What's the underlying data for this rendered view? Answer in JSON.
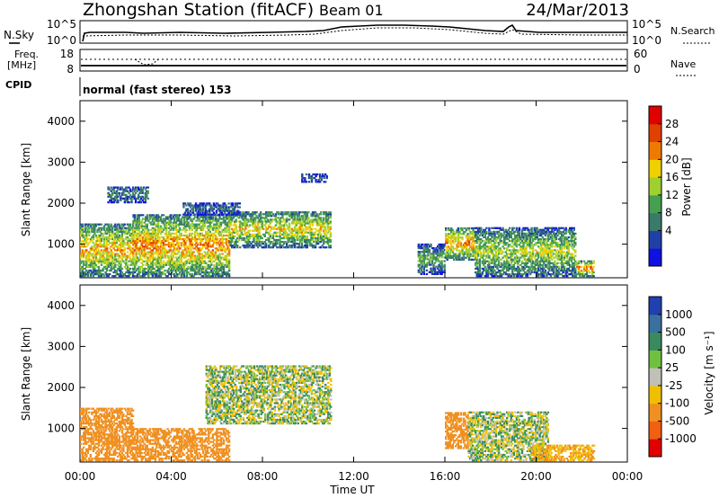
{
  "header": {
    "title": "Zhongshan Station (fitACF)",
    "beam": "Beam 01",
    "date": "24/Mar/2013"
  },
  "top_panel": {
    "left_label": "N.Sky",
    "right_label": "N.Search",
    "left_ticks": [
      "10^5",
      "10^0"
    ],
    "right_ticks": [
      "10^5",
      "10^0"
    ]
  },
  "freq_panel": {
    "left_label_line1": "Freq.",
    "left_label_line2": "[MHz]",
    "right_label": "Nave",
    "left_ticks": [
      "18",
      "8"
    ],
    "right_ticks": [
      "60",
      "0"
    ]
  },
  "cpid": {
    "label": "CPID",
    "text": "normal (fast stereo) 153"
  },
  "xaxis": {
    "label": "Time UT",
    "ticks": [
      "00:00",
      "04:00",
      "08:00",
      "12:00",
      "16:00",
      "20:00",
      "00:00"
    ]
  },
  "power_panel": {
    "ylabel": "Slant Range [km]",
    "yticks": [
      "4000",
      "3000",
      "2000",
      "1000"
    ],
    "colorbar_label": "Power [dB]",
    "colorbar_ticks": [
      "28",
      "24",
      "20",
      "16",
      "12",
      "8",
      "4"
    ],
    "colors": [
      "#1010e0",
      "#2040a8",
      "#3a7a6a",
      "#45a050",
      "#a0d030",
      "#f0d000",
      "#f07a00",
      "#e04000",
      "#e00000"
    ]
  },
  "velocity_panel": {
    "ylabel": "Slant Range [km]",
    "yticks": [
      "4000",
      "3000",
      "2000",
      "1000"
    ],
    "colorbar_label": "Velocity [m s⁻¹]",
    "colorbar_ticks": [
      "1000",
      "500",
      "100",
      "25",
      "-25",
      "-100",
      "-500",
      "-1000"
    ],
    "colors": [
      "#2040b0",
      "#3a70a0",
      "#3a8a60",
      "#70c040",
      "#c0c0b8",
      "#f0c000",
      "#f09020",
      "#f06010",
      "#e00000"
    ]
  },
  "chart_data": {
    "type": "heatmap",
    "title": "Zhongshan Station (fitACF)",
    "xlabel": "Time UT",
    "ylabel": "Slant Range [km]",
    "xlim": [
      "00:00",
      "24:00"
    ],
    "ylim": [
      180,
      4500
    ],
    "power_regions": [
      {
        "t": [
          0.0,
          2.3
        ],
        "r": [
          200,
          1500
        ],
        "db": 20
      },
      {
        "t": [
          2.3,
          6.5
        ],
        "r": [
          200,
          1700
        ],
        "db": 22
      },
      {
        "t": [
          6.5,
          11.0
        ],
        "r": [
          900,
          1800
        ],
        "db": 18
      },
      {
        "t": [
          1.2,
          3.0
        ],
        "r": [
          2000,
          2400
        ],
        "db": 10
      },
      {
        "t": [
          4.5,
          7.0
        ],
        "r": [
          1700,
          2000
        ],
        "db": 8
      },
      {
        "t": [
          9.7,
          10.8
        ],
        "r": [
          2500,
          2700
        ],
        "db": 8
      },
      {
        "t": [
          14.8,
          16.0
        ],
        "r": [
          250,
          1000
        ],
        "db": 12
      },
      {
        "t": [
          16.0,
          17.3
        ],
        "r": [
          600,
          1400
        ],
        "db": 22
      },
      {
        "t": [
          17.3,
          21.7
        ],
        "r": [
          200,
          1400
        ],
        "db": 16
      },
      {
        "t": [
          21.7,
          22.5
        ],
        "r": [
          200,
          600
        ],
        "db": 22
      }
    ],
    "velocity_regions": [
      {
        "t": [
          0.0,
          2.3
        ],
        "r": [
          200,
          1500
        ],
        "v": -300
      },
      {
        "t": [
          2.3,
          6.5
        ],
        "r": [
          200,
          1000
        ],
        "v": -300
      },
      {
        "t": [
          5.5,
          11.0
        ],
        "r": [
          1100,
          2500
        ],
        "v": 0
      },
      {
        "t": [
          16.0,
          17.0
        ],
        "r": [
          500,
          1400
        ],
        "v": -300
      },
      {
        "t": [
          17.0,
          20.5
        ],
        "r": [
          200,
          1400
        ],
        "v": 0
      },
      {
        "t": [
          19.8,
          22.5
        ],
        "r": [
          200,
          600
        ],
        "v": -100
      }
    ]
  }
}
